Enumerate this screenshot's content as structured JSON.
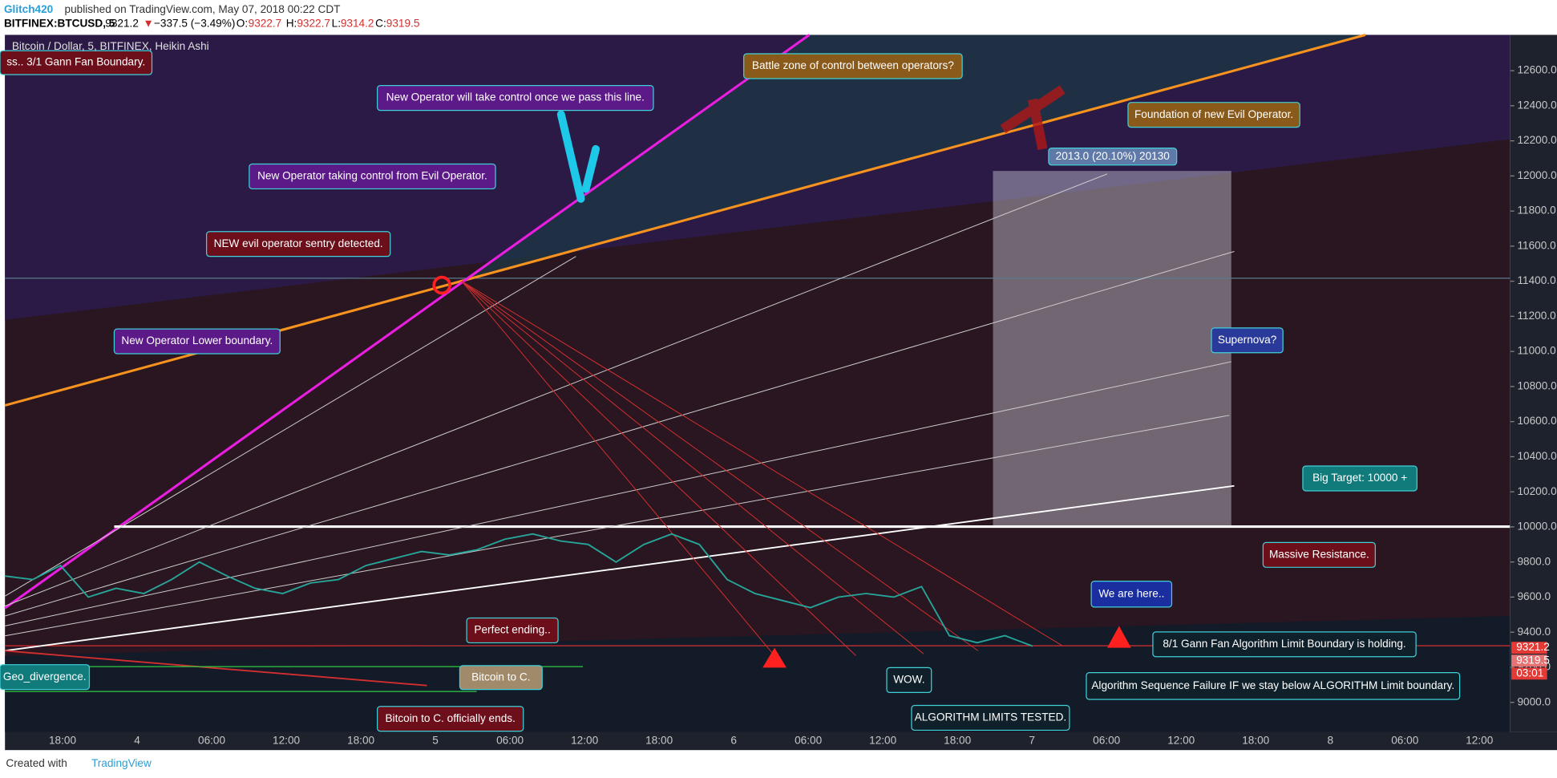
{
  "header": {
    "author": "Glitch420",
    "published": "published on TradingView.com, May 07, 2018 00:22 CDT",
    "symbol": "BITFINEX:BTCUSD, 5",
    "last": "9321.2",
    "direction": "▼",
    "change": "−337.5 (−3.49%)",
    "open_label": "O:",
    "open": "9322.7",
    "high_label": "H:",
    "high": "9322.7",
    "low_label": "L:",
    "low": "9314.2",
    "close_label": "C:",
    "close": "9319.5"
  },
  "chart_data": {
    "type": "line",
    "title": "Bitcoin / Dollar, 5, BITFINEX, Heikin Ashi",
    "values": [
      9720,
      9700,
      9780,
      9600,
      9650,
      9620,
      9700,
      9800,
      9720,
      9650,
      9620,
      9680,
      9700,
      9780,
      9820,
      9860,
      9840,
      9870,
      9930,
      9960,
      9920,
      9900,
      9800,
      9900,
      9960,
      9900,
      9700,
      9620,
      9580,
      9540,
      9600,
      9620,
      9600,
      9660,
      9380,
      9340,
      9380,
      9320
    ],
    "color": "#26a69a",
    "ylim": [
      8830,
      12804
    ],
    "yticks": [
      {
        "value": 9000,
        "label": "9000.0"
      },
      {
        "value": 9200,
        "label": "9200.0"
      },
      {
        "value": 9400,
        "label": "9400.0"
      },
      {
        "value": 9600,
        "label": "9600.0"
      },
      {
        "value": 9800,
        "label": "9800.0"
      },
      {
        "value": 10000,
        "label": "10000.0"
      },
      {
        "value": 10200,
        "label": "10200.0"
      },
      {
        "value": 10400,
        "label": "10400.0"
      },
      {
        "value": 10600,
        "label": "10600.0"
      },
      {
        "value": 10800,
        "label": "10800.0"
      },
      {
        "value": 11000,
        "label": "11000.0"
      },
      {
        "value": 11200,
        "label": "11200.0"
      },
      {
        "value": 11400,
        "label": "11400.0"
      },
      {
        "value": 11600,
        "label": "11600.0"
      },
      {
        "value": 11800,
        "label": "11800.0"
      },
      {
        "value": 12000,
        "label": "12000.0"
      },
      {
        "value": 12200,
        "label": "12200.0"
      },
      {
        "value": 12400,
        "label": "12400.0"
      },
      {
        "value": 12600,
        "label": "12600.0"
      }
    ],
    "xtick_labels": [
      "18:00",
      "4",
      "06:00",
      "12:00",
      "18:00",
      "5",
      "06:00",
      "12:00",
      "18:00",
      "6",
      "06:00",
      "12:00",
      "18:00",
      "7",
      "06:00",
      "12:00",
      "18:00",
      "8",
      "06:00",
      "12:00"
    ],
    "price_labels": [
      "9321.2",
      "9319.5",
      "03:01"
    ]
  },
  "annotations": [
    "ss.. 3/1 Gann Fan Boundary.",
    "New Operator will take control once we pass this line.",
    "Battle zone of control between operators?",
    "Foundation of new Evil Operator.",
    "New Operator taking control from Evil Operator.",
    "NEW evil operator sentry detected.",
    "New Operator Lower boundary.",
    "Supernova?",
    "Big Target: 10000 +",
    "Massive Resistance.",
    "We are here..",
    "8/1 Gann Fan Algorithm Limit Boundary is holding.",
    "Algorithm Sequence Failure IF we stay below ALGORITHM Limit boundary.",
    "Perfect ending..",
    "Bitcoin to C.",
    "Geo_divergence.",
    "Bitcoin to C. officially ends.",
    "WOW.",
    "ALGORITHM LIMITS TESTED.",
    "2013.0 (20.10%) 20130"
  ],
  "footer": {
    "created": "Created with",
    "brand": "TradingView"
  }
}
